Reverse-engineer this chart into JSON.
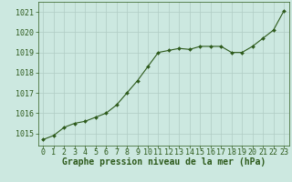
{
  "x": [
    0,
    1,
    2,
    3,
    4,
    5,
    6,
    7,
    8,
    9,
    10,
    11,
    12,
    13,
    14,
    15,
    16,
    17,
    18,
    19,
    20,
    21,
    22,
    23
  ],
  "y": [
    1014.7,
    1014.9,
    1015.3,
    1015.5,
    1015.6,
    1015.8,
    1016.0,
    1016.4,
    1017.0,
    1017.6,
    1018.3,
    1019.0,
    1019.1,
    1019.2,
    1019.15,
    1019.3,
    1019.3,
    1019.3,
    1019.0,
    1019.0,
    1019.3,
    1019.7,
    1020.1,
    1021.05
  ],
  "line_color": "#2d5a1b",
  "marker_color": "#2d5a1b",
  "bg_color": "#cce8e0",
  "grid_color": "#b0ccc4",
  "xlabel": "Graphe pression niveau de la mer (hPa)",
  "xlabel_color": "#2d5a1b",
  "tick_color": "#2d5a1b",
  "ylim_min": 1014.4,
  "ylim_max": 1021.5,
  "yticks": [
    1015,
    1016,
    1017,
    1018,
    1019,
    1020,
    1021
  ],
  "xticks": [
    0,
    1,
    2,
    3,
    4,
    5,
    6,
    7,
    8,
    9,
    10,
    11,
    12,
    13,
    14,
    15,
    16,
    17,
    18,
    19,
    20,
    21,
    22,
    23
  ],
  "tick_fontsize": 6.0,
  "xlabel_fontsize": 7.0,
  "ylabel_fontsize": 6.0,
  "line_width": 0.8,
  "marker_size": 2.0
}
